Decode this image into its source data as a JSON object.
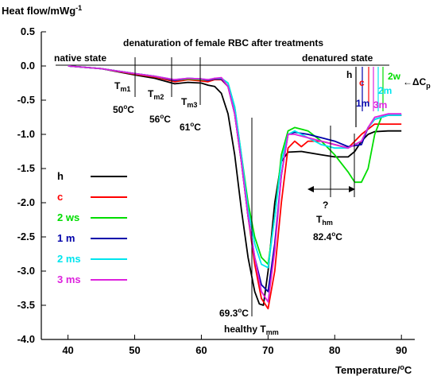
{
  "chart_data": {
    "type": "line",
    "title": "denaturation of female RBC after treatments",
    "ylabel": "Heat flow/mWg",
    "ylabel_sup": "-1",
    "xlabel": "Temperature/",
    "xlabel_unit_sup": "o",
    "xlabel_unit": "C",
    "xlim": [
      36,
      92
    ],
    "ylim": [
      -4.0,
      0.5
    ],
    "x_ticks": [
      40,
      50,
      60,
      70,
      80,
      90
    ],
    "y_ticks": [
      0.5,
      0.0,
      -0.5,
      -1.0,
      -1.5,
      -2.0,
      -2.5,
      -3.0,
      -3.5,
      -4.0
    ],
    "x_tick_labels": [
      "40",
      "50",
      "60",
      "70",
      "80",
      "90"
    ],
    "y_tick_labels": [
      "0.5",
      "0.0",
      "-0.5",
      "-1.0",
      "-1.5",
      "-2.0",
      "-2.5",
      "-3.0",
      "-3.5",
      "-4.0"
    ],
    "grid": false,
    "legend_position": "left-middle",
    "series": [
      {
        "name": "h",
        "color": "#000000",
        "points": [
          [
            40,
            0.0
          ],
          [
            45,
            -0.04
          ],
          [
            50,
            -0.13
          ],
          [
            53,
            -0.18
          ],
          [
            56,
            -0.26
          ],
          [
            58,
            -0.24
          ],
          [
            60,
            -0.25
          ],
          [
            61,
            -0.28
          ],
          [
            62,
            -0.3
          ],
          [
            63,
            -0.4
          ],
          [
            64,
            -0.7
          ],
          [
            65,
            -1.3
          ],
          [
            66,
            -2.1
          ],
          [
            67,
            -2.8
          ],
          [
            68,
            -3.3
          ],
          [
            68.7,
            -3.48
          ],
          [
            69.3,
            -3.5
          ],
          [
            70,
            -3.0
          ],
          [
            71,
            -2.0
          ],
          [
            72,
            -1.4
          ],
          [
            73,
            -1.26
          ],
          [
            75,
            -1.25
          ],
          [
            78,
            -1.3
          ],
          [
            80,
            -1.33
          ],
          [
            82,
            -1.33
          ],
          [
            83,
            -1.25
          ],
          [
            84,
            -1.1
          ],
          [
            85,
            -1.0
          ],
          [
            86,
            -0.96
          ],
          [
            88,
            -0.95
          ],
          [
            90,
            -0.95
          ]
        ]
      },
      {
        "name": "c",
        "color": "#ff0000",
        "points": [
          [
            40,
            0.0
          ],
          [
            45,
            -0.04
          ],
          [
            50,
            -0.12
          ],
          [
            53,
            -0.16
          ],
          [
            56,
            -0.23
          ],
          [
            58,
            -0.2
          ],
          [
            60,
            -0.22
          ],
          [
            61,
            -0.23
          ],
          [
            62,
            -0.2
          ],
          [
            63,
            -0.2
          ],
          [
            64,
            -0.3
          ],
          [
            65,
            -0.7
          ],
          [
            66,
            -1.4
          ],
          [
            67,
            -2.2
          ],
          [
            68,
            -2.9
          ],
          [
            69,
            -3.4
          ],
          [
            70,
            -3.55
          ],
          [
            71,
            -3.0
          ],
          [
            72,
            -2.0
          ],
          [
            73,
            -1.2
          ],
          [
            74,
            -1.1
          ],
          [
            75,
            -1.18
          ],
          [
            76,
            -1.1
          ],
          [
            78,
            -1.1
          ],
          [
            80,
            -1.15
          ],
          [
            82,
            -1.2
          ],
          [
            84,
            -1.0
          ],
          [
            86,
            -0.85
          ],
          [
            88,
            -0.85
          ],
          [
            90,
            -0.85
          ]
        ]
      },
      {
        "name": "2 ws",
        "color": "#00dd00",
        "points": [
          [
            40,
            0.0
          ],
          [
            45,
            -0.04
          ],
          [
            50,
            -0.11
          ],
          [
            53,
            -0.15
          ],
          [
            56,
            -0.21
          ],
          [
            58,
            -0.19
          ],
          [
            60,
            -0.2
          ],
          [
            61,
            -0.21
          ],
          [
            62,
            -0.19
          ],
          [
            63,
            -0.18
          ],
          [
            64,
            -0.25
          ],
          [
            65,
            -0.6
          ],
          [
            66,
            -1.3
          ],
          [
            67,
            -2.0
          ],
          [
            68,
            -2.5
          ],
          [
            69,
            -2.8
          ],
          [
            70,
            -2.9
          ],
          [
            71,
            -2.2
          ],
          [
            72,
            -1.3
          ],
          [
            73,
            -0.95
          ],
          [
            74,
            -0.9
          ],
          [
            76,
            -0.95
          ],
          [
            78,
            -1.1
          ],
          [
            80,
            -1.3
          ],
          [
            82,
            -1.55
          ],
          [
            83,
            -1.7
          ],
          [
            84,
            -1.7
          ],
          [
            85,
            -1.5
          ],
          [
            86,
            -1.0
          ],
          [
            87,
            -0.75
          ],
          [
            88,
            -0.72
          ],
          [
            90,
            -0.72
          ]
        ]
      },
      {
        "name": "1 m",
        "color": "#0000aa",
        "points": [
          [
            40,
            0.0
          ],
          [
            45,
            -0.04
          ],
          [
            50,
            -0.11
          ],
          [
            53,
            -0.15
          ],
          [
            56,
            -0.21
          ],
          [
            58,
            -0.18
          ],
          [
            60,
            -0.19
          ],
          [
            61,
            -0.21
          ],
          [
            62,
            -0.19
          ],
          [
            63,
            -0.19
          ],
          [
            64,
            -0.3
          ],
          [
            65,
            -0.7
          ],
          [
            66,
            -1.4
          ],
          [
            67,
            -2.2
          ],
          [
            68,
            -2.8
          ],
          [
            69,
            -3.2
          ],
          [
            70,
            -3.3
          ],
          [
            71,
            -2.6
          ],
          [
            72,
            -1.6
          ],
          [
            73,
            -1.0
          ],
          [
            74,
            -0.97
          ],
          [
            76,
            -1.0
          ],
          [
            78,
            -1.05
          ],
          [
            80,
            -1.1
          ],
          [
            82,
            -1.18
          ],
          [
            84,
            -1.15
          ],
          [
            85,
            -0.9
          ],
          [
            86,
            -0.78
          ],
          [
            88,
            -0.72
          ],
          [
            90,
            -0.72
          ]
        ]
      },
      {
        "name": "2 ms",
        "color": "#00e5ee",
        "points": [
          [
            40,
            0.0
          ],
          [
            45,
            -0.04
          ],
          [
            50,
            -0.11
          ],
          [
            53,
            -0.15
          ],
          [
            56,
            -0.2
          ],
          [
            58,
            -0.18
          ],
          [
            60,
            -0.19
          ],
          [
            61,
            -0.2
          ],
          [
            62,
            -0.18
          ],
          [
            63,
            -0.18
          ],
          [
            64,
            -0.25
          ],
          [
            65,
            -0.6
          ],
          [
            66,
            -1.3
          ],
          [
            67,
            -2.1
          ],
          [
            68,
            -2.6
          ],
          [
            69,
            -2.9
          ],
          [
            70,
            -2.95
          ],
          [
            71,
            -2.2
          ],
          [
            72,
            -1.4
          ],
          [
            73,
            -1.0
          ],
          [
            74,
            -0.95
          ],
          [
            76,
            -1.05
          ],
          [
            78,
            -1.15
          ],
          [
            80,
            -1.2
          ],
          [
            82,
            -1.2
          ],
          [
            84,
            -1.1
          ],
          [
            85,
            -0.9
          ],
          [
            86,
            -0.78
          ],
          [
            88,
            -0.72
          ],
          [
            90,
            -0.72
          ]
        ]
      },
      {
        "name": "3 ms",
        "color": "#dd22dd",
        "points": [
          [
            40,
            0.0
          ],
          [
            45,
            -0.04
          ],
          [
            50,
            -0.11
          ],
          [
            53,
            -0.15
          ],
          [
            56,
            -0.2
          ],
          [
            58,
            -0.18
          ],
          [
            60,
            -0.19
          ],
          [
            61,
            -0.2
          ],
          [
            62,
            -0.18
          ],
          [
            63,
            -0.17
          ],
          [
            64,
            -0.3
          ],
          [
            65,
            -0.7
          ],
          [
            66,
            -1.4
          ],
          [
            67,
            -2.2
          ],
          [
            68,
            -2.8
          ],
          [
            69,
            -3.3
          ],
          [
            70,
            -3.45
          ],
          [
            71,
            -2.7
          ],
          [
            72,
            -1.6
          ],
          [
            73,
            -1.0
          ],
          [
            74,
            -1.0
          ],
          [
            76,
            -1.05
          ],
          [
            78,
            -1.1
          ],
          [
            80,
            -1.15
          ],
          [
            82,
            -1.2
          ],
          [
            84,
            -1.1
          ],
          [
            85,
            -0.9
          ],
          [
            86,
            -0.75
          ],
          [
            88,
            -0.7
          ],
          [
            90,
            -0.7
          ]
        ]
      }
    ],
    "annotations": {
      "title": "denaturation of female RBC after treatments",
      "native_state": "native state",
      "denatured_state": "denatured state",
      "tm1": "T",
      "tm1_sub": "m1",
      "tm2": "T",
      "tm2_sub": "m2",
      "tm3": "T",
      "tm3_sub": "m3",
      "t50": "50",
      "t56": "56",
      "t61": "61",
      "deg": "o",
      "c": "C",
      "t693": "69.3",
      "t824": "82.4",
      "healthy": "healthy T",
      "healthy_sub": "mm",
      "question": "?",
      "thm": "T",
      "thm_sub": "hm",
      "delta_cp": "ΔC",
      "delta_cp_sub": "p",
      "label_h": "h",
      "label_c": "c",
      "label_2w": "2w",
      "label_2m": "2m",
      "label_1m": "1m",
      "label_3m": "3m"
    }
  }
}
